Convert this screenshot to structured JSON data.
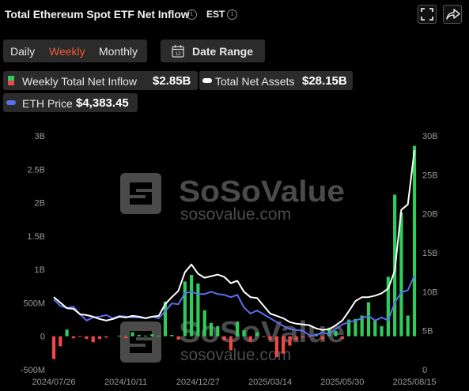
{
  "header": {
    "title": "Total Ethereum Spot ETF Net Inflow",
    "timezone": "EST"
  },
  "periods": [
    {
      "label": "Daily",
      "active": false
    },
    {
      "label": "Weekly",
      "active": true
    },
    {
      "label": "Monthly",
      "active": false
    }
  ],
  "date_range_label": "Date Range",
  "legend": {
    "inflow": {
      "name": "Weekly Total Net Inflow",
      "value": "$2.85B"
    },
    "assets": {
      "name": "Total Net Assets",
      "value": "$28.15B"
    },
    "price": {
      "name": "ETH Price",
      "value": "$4,383.45"
    }
  },
  "watermark": {
    "brand": "SoSoValue",
    "site": "sosovalue.com"
  },
  "colors": {
    "positive": "#2ecc5a",
    "negative": "#ef4848",
    "assets_line": "#ffffff",
    "price_line": "#5b6ef0",
    "accent": "#f05a37"
  },
  "chart_data": {
    "type": "bar",
    "title": "Total Ethereum Spot ETF Net Inflow",
    "left_axis": {
      "ticks": [
        "3B",
        "2.5B",
        "2B",
        "1.5B",
        "1B",
        "500M",
        "0",
        "-500M"
      ],
      "range": [
        -500000000,
        3000000000
      ]
    },
    "right_axis": {
      "ticks": [
        "30B",
        "25B",
        "20B",
        "15B",
        "10B",
        "5B",
        "0"
      ],
      "range": [
        0,
        30000000000
      ]
    },
    "x_tick_labels": [
      "2024/07/26",
      "2024/10/11",
      "2024/12/27",
      "2025/03/14",
      "2025/05/30",
      "2025/08/15"
    ],
    "weeks": 56,
    "series": [
      {
        "name": "Weekly Total Net Inflow",
        "kind": "bar",
        "axis": "left",
        "values": [
          -340000000,
          -150000000,
          100000000,
          -30000000,
          -10000000,
          -40000000,
          -90000000,
          -40000000,
          -20000000,
          0,
          10000000,
          -30000000,
          60000000,
          20000000,
          10000000,
          30000000,
          10000000,
          520000000,
          20000000,
          -50000000,
          820000000,
          920000000,
          790000000,
          390000000,
          200000000,
          150000000,
          -60000000,
          -210000000,
          220000000,
          90000000,
          -80000000,
          60000000,
          -10000000,
          -60000000,
          -310000000,
          -260000000,
          -140000000,
          -60000000,
          -20000000,
          -10000000,
          40000000,
          -50000000,
          130000000,
          80000000,
          -40000000,
          250000000,
          260000000,
          310000000,
          510000000,
          240000000,
          150000000,
          890000000,
          2120000000,
          1850000000,
          310000000,
          2850000000
        ]
      },
      {
        "name": "Total Net Assets",
        "kind": "line",
        "axis": "right",
        "values": [
          9300000000,
          8600000000,
          7900000000,
          7800000000,
          7100000000,
          7000000000,
          6800000000,
          6500000000,
          6300000000,
          6500000000,
          6800000000,
          6700000000,
          6900000000,
          6800000000,
          6600000000,
          6800000000,
          6900000000,
          8400000000,
          9300000000,
          10100000000,
          12500000000,
          13500000000,
          12300000000,
          11800000000,
          12000000000,
          12200000000,
          11900000000,
          11100000000,
          11400000000,
          10000000000,
          9300000000,
          9200000000,
          8200000000,
          7200000000,
          6900000000,
          6600000000,
          6100000000,
          5900000000,
          5800000000,
          5700000000,
          5300000000,
          5100000000,
          5200000000,
          5700000000,
          6300000000,
          7500000000,
          8800000000,
          9300000000,
          9300000000,
          9500000000,
          9800000000,
          10400000000,
          12700000000,
          20500000000,
          21200000000,
          28150000000
        ]
      },
      {
        "name": "ETH Price",
        "kind": "line",
        "axis": "right",
        "values": [
          9000000000,
          8200000000,
          7900000000,
          8100000000,
          7100000000,
          6300000000,
          6700000000,
          6800000000,
          7000000000,
          6600000000,
          6900000000,
          6800000000,
          6700000000,
          6700000000,
          6600000000,
          6800000000,
          6600000000,
          7500000000,
          8500000000,
          8400000000,
          9800000000,
          10000000000,
          9700000000,
          9700000000,
          10000000000,
          9700000000,
          9600000000,
          9300000000,
          9600000000,
          8000000000,
          7200000000,
          7600000000,
          7100000000,
          6600000000,
          6100000000,
          5600000000,
          5200000000,
          5100000000,
          5000000000,
          4400000000,
          4400000000,
          4800000000,
          4500000000,
          5200000000,
          5800000000,
          6100000000,
          6300000000,
          6600000000,
          6900000000,
          6300000000,
          6700000000,
          6300000000,
          8600000000,
          9900000000,
          10200000000,
          12100000000
        ]
      }
    ]
  }
}
